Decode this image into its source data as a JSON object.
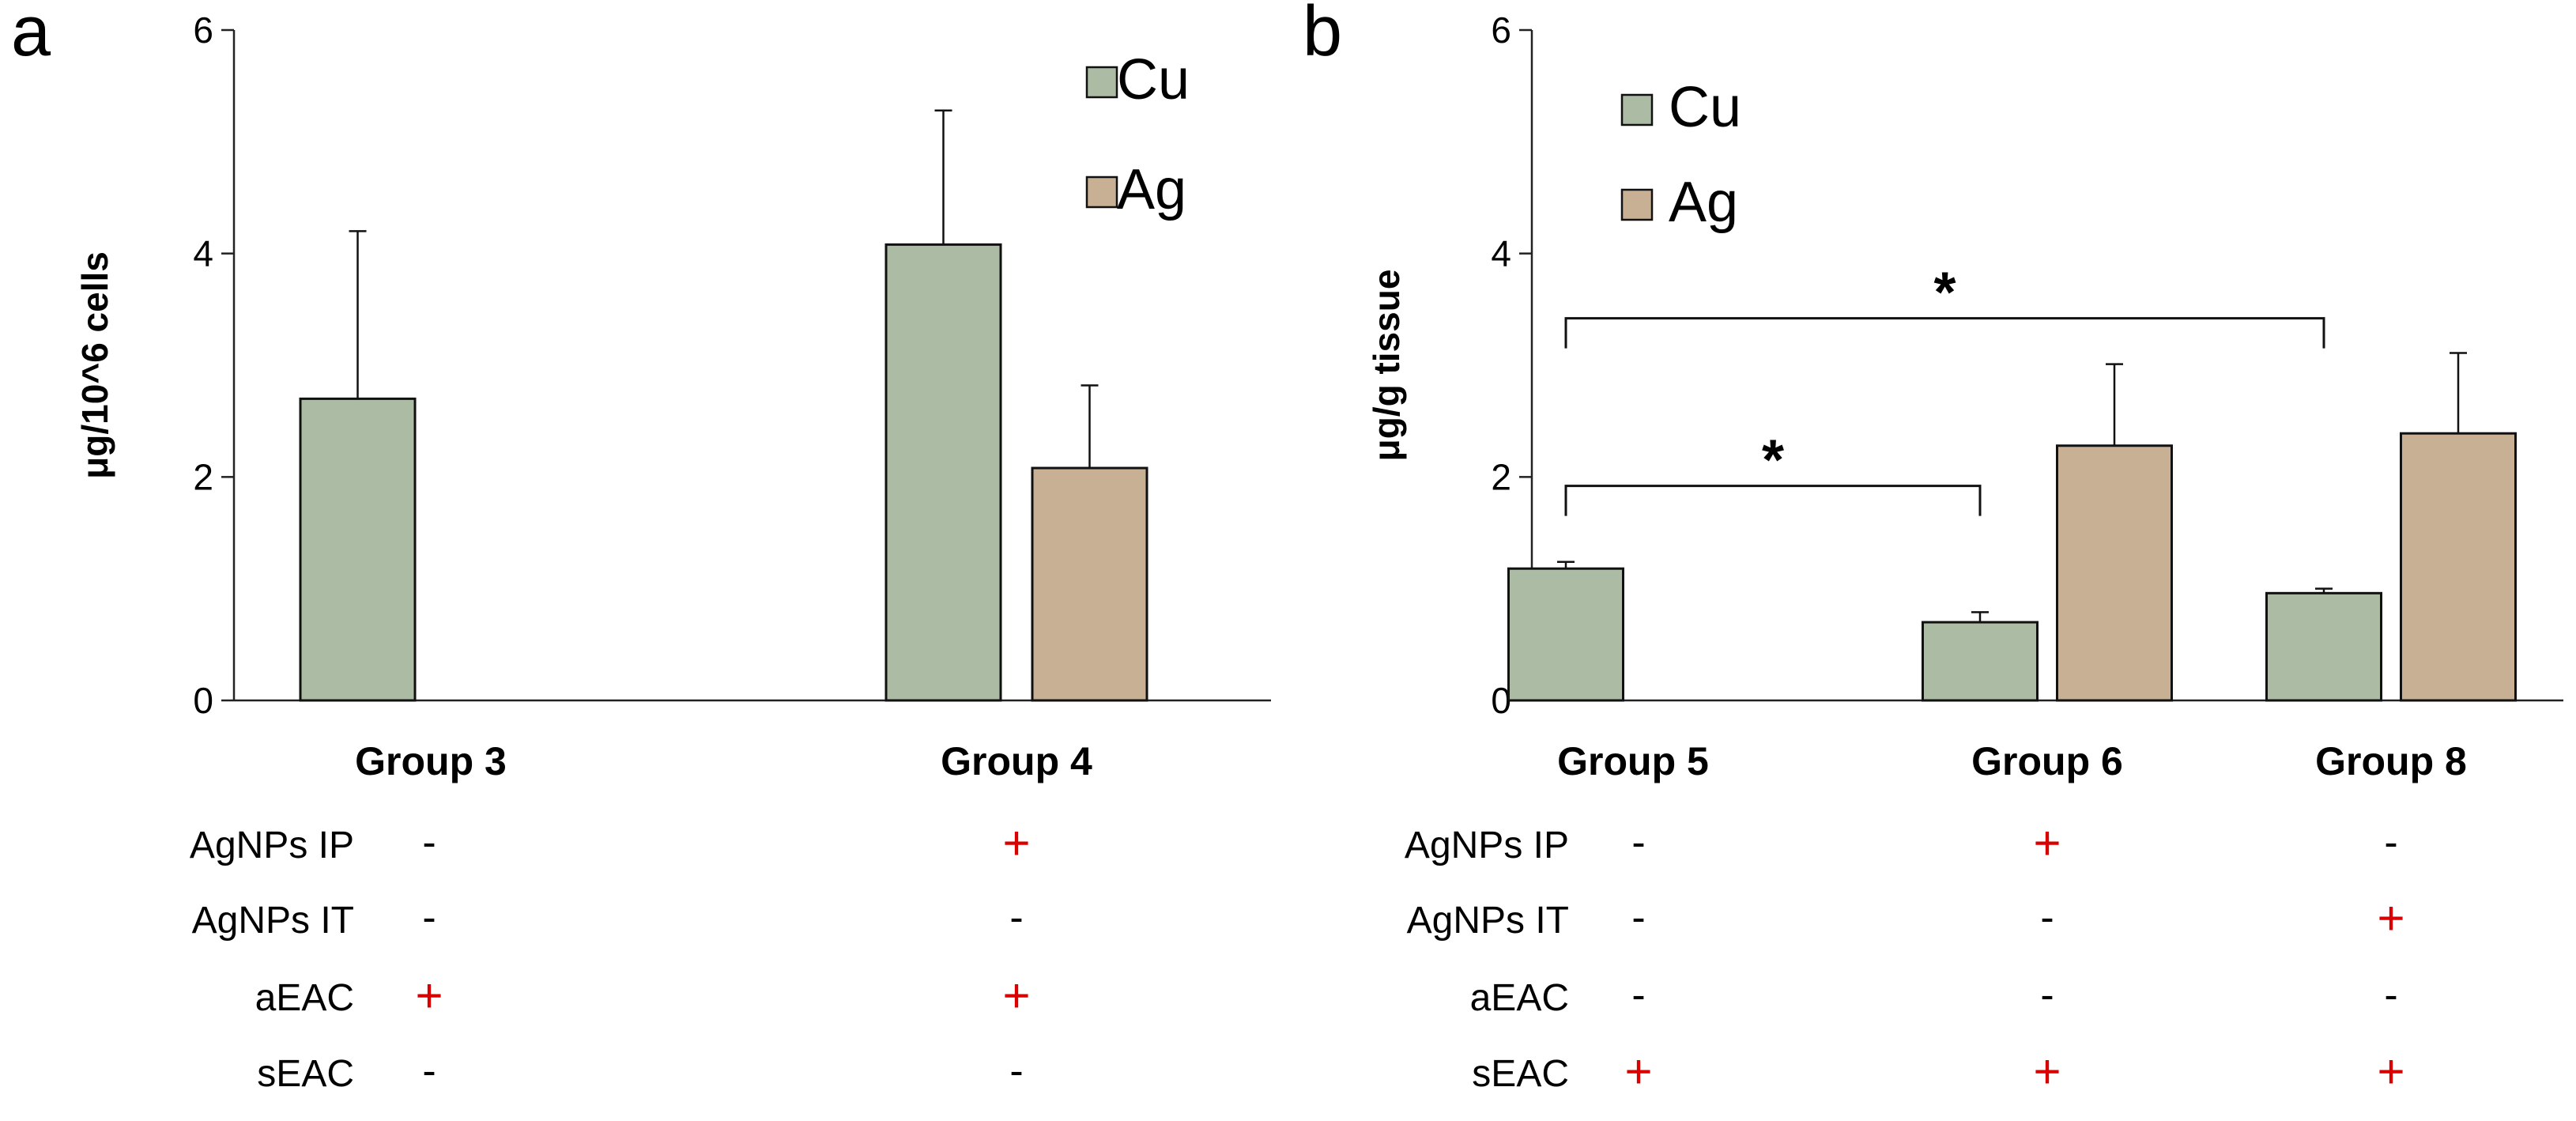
{
  "colors": {
    "cu": "#abbba4",
    "ag": "#c7b093",
    "plus": "#d90000",
    "minus": "#000000",
    "axis": "#222222"
  },
  "chart_data": [
    {
      "panel_label": "a",
      "type": "bar",
      "title": "",
      "ylabel": "μg/10^6 cells",
      "xlabel": "",
      "ylim": [
        0,
        6
      ],
      "yticks": [
        "0",
        "2",
        "4",
        "6"
      ],
      "categories": [
        "Group 3",
        "Group 4"
      ],
      "legend_position": "top-right",
      "series": [
        {
          "name": "Cu",
          "color": "#abbba4",
          "values": [
            2.7,
            4.08
          ],
          "errors": [
            1.5,
            1.2
          ]
        },
        {
          "name": "Ag",
          "color": "#c7b093",
          "values": [
            null,
            2.08
          ],
          "errors": [
            null,
            0.74
          ]
        }
      ],
      "significance": [],
      "conditions": [
        {
          "label": "AgNPs IP",
          "marks": [
            "-",
            "+"
          ]
        },
        {
          "label": "AgNPs IT",
          "marks": [
            "-",
            "-"
          ]
        },
        {
          "label": "aEAC",
          "marks": [
            "+",
            "+"
          ]
        },
        {
          "label": "sEAC",
          "marks": [
            "-",
            "-"
          ]
        }
      ]
    },
    {
      "panel_label": "b",
      "type": "bar",
      "title": "",
      "ylabel": "μg/g tissue",
      "xlabel": "",
      "ylim": [
        0,
        6
      ],
      "yticks": [
        "0",
        "2",
        "4",
        "6"
      ],
      "categories": [
        "Group 5",
        "Group 6",
        "Group 8"
      ],
      "legend_position": "top-left",
      "series": [
        {
          "name": "Cu",
          "color": "#abbba4",
          "values": [
            1.18,
            0.7,
            0.96
          ],
          "errors": [
            0.06,
            0.09,
            0.04
          ]
        },
        {
          "name": "Ag",
          "color": "#c7b093",
          "values": [
            null,
            2.28,
            2.39
          ],
          "errors": [
            null,
            0.73,
            0.72
          ]
        }
      ],
      "significance": [
        {
          "label": "*",
          "from": "Group 5",
          "to": "Group 6",
          "y": 1.92
        },
        {
          "label": "*",
          "from": "Group 5",
          "to": "Group 8",
          "y": 3.42
        }
      ],
      "conditions": [
        {
          "label": "AgNPs IP",
          "marks": [
            "-",
            "+",
            "-"
          ]
        },
        {
          "label": "AgNPs IT",
          "marks": [
            "-",
            "-",
            "+"
          ]
        },
        {
          "label": "aEAC",
          "marks": [
            "-",
            "-",
            "-"
          ]
        },
        {
          "label": "sEAC",
          "marks": [
            "+",
            "+",
            "+"
          ]
        }
      ]
    }
  ]
}
